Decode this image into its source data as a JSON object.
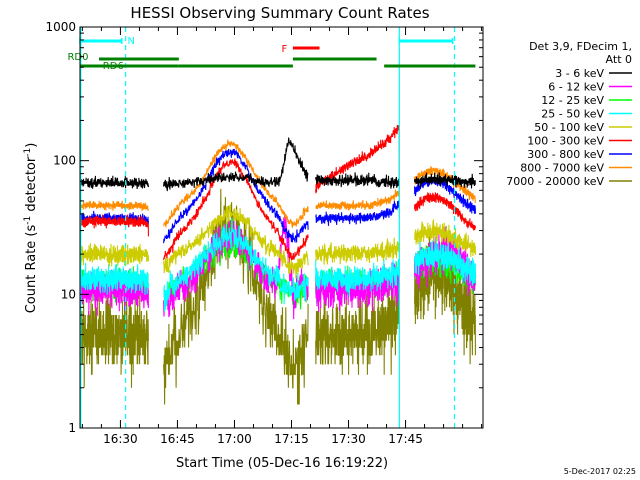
{
  "chart_data": {
    "type": "line",
    "title": "HESSI Observing Summary Count Rates",
    "xlabel": "Start Time (05-Dec-16 16:19:22)",
    "ylabel_main": "Count Rate (s",
    "ylabel_sup1": "-1",
    "ylabel_mid": " detector",
    "ylabel_sup2": "-1",
    "ylabel_end": ")",
    "footer": "5-Dec-2017 02:25",
    "x_range_minutes": [
      0,
      106
    ],
    "y_scale": "log",
    "ylim": [
      1,
      1000
    ],
    "x_ticks": [
      {
        "label": "16:30",
        "t": 10.63
      },
      {
        "label": "16:45",
        "t": 25.63
      },
      {
        "label": "17:00",
        "t": 40.63
      },
      {
        "label": "17:15",
        "t": 55.63
      },
      {
        "label": "17:30",
        "t": 70.63
      },
      {
        "label": "17:45",
        "t": 85.63
      }
    ],
    "y_ticks": [
      {
        "label": "1",
        "v": 1
      },
      {
        "label": "10",
        "v": 10
      },
      {
        "label": "100",
        "v": 100
      },
      {
        "label": "1000",
        "v": 1000
      }
    ],
    "legend": {
      "header1": "Det 3,9, FDecim 1,",
      "header2": "Att 0",
      "placement": "right"
    },
    "series": [
      {
        "name": "3 - 6 keV",
        "color": "#000000",
        "key": "k"
      },
      {
        "name": "6 - 12 keV",
        "color": "#ff00ff",
        "key": "m"
      },
      {
        "name": "12 - 25 keV",
        "color": "#00ff00",
        "key": "g"
      },
      {
        "name": "25 - 50 keV",
        "color": "#00ffff",
        "key": "c"
      },
      {
        "name": "50 - 100 keV",
        "color": "#cccc00",
        "key": "y"
      },
      {
        "name": "100 - 300 keV",
        "color": "#ff0000",
        "key": "r"
      },
      {
        "name": "300 - 800 keV",
        "color": "#0000ff",
        "key": "b"
      },
      {
        "name": "800 - 7000 keV",
        "color": "#ff8c00",
        "key": "o"
      },
      {
        "name": "7000 - 20000 keV",
        "color": "#808000",
        "key": "ol"
      }
    ],
    "time_blocks": [
      [
        0,
        18
      ],
      [
        22,
        60
      ],
      [
        62,
        84
      ],
      [
        88,
        104
      ]
    ],
    "data_gaps_minutes": [
      [
        18,
        22
      ],
      [
        60,
        62
      ],
      [
        84,
        88
      ]
    ],
    "flags": [
      {
        "label": "N",
        "color": "#00ffff",
        "segments": [
          [
            0,
            11
          ],
          [
            84,
            98
          ]
        ],
        "level": "top"
      },
      {
        "label": "F",
        "color": "#ff0000",
        "segments": [
          [
            56,
            63
          ]
        ],
        "level": "high"
      },
      {
        "label": "RD0",
        "color": "#008000",
        "segments": [
          [
            5,
            26
          ],
          [
            56,
            78
          ]
        ],
        "level": "mid"
      },
      {
        "label": "RD6",
        "color": "#008000",
        "segments": [
          [
            0,
            26
          ],
          [
            26,
            56
          ],
          [
            80,
            104
          ]
        ],
        "level": "low"
      }
    ],
    "vertical_lines": [
      {
        "t": 0.2,
        "color": "#00ffff",
        "style": "solid"
      },
      {
        "t": 12,
        "color": "#00ffff",
        "style": "dashed"
      },
      {
        "t": 84,
        "color": "#00ffff",
        "style": "solid"
      },
      {
        "t": 98.5,
        "color": "#00ffff",
        "style": "dashed"
      }
    ]
  }
}
